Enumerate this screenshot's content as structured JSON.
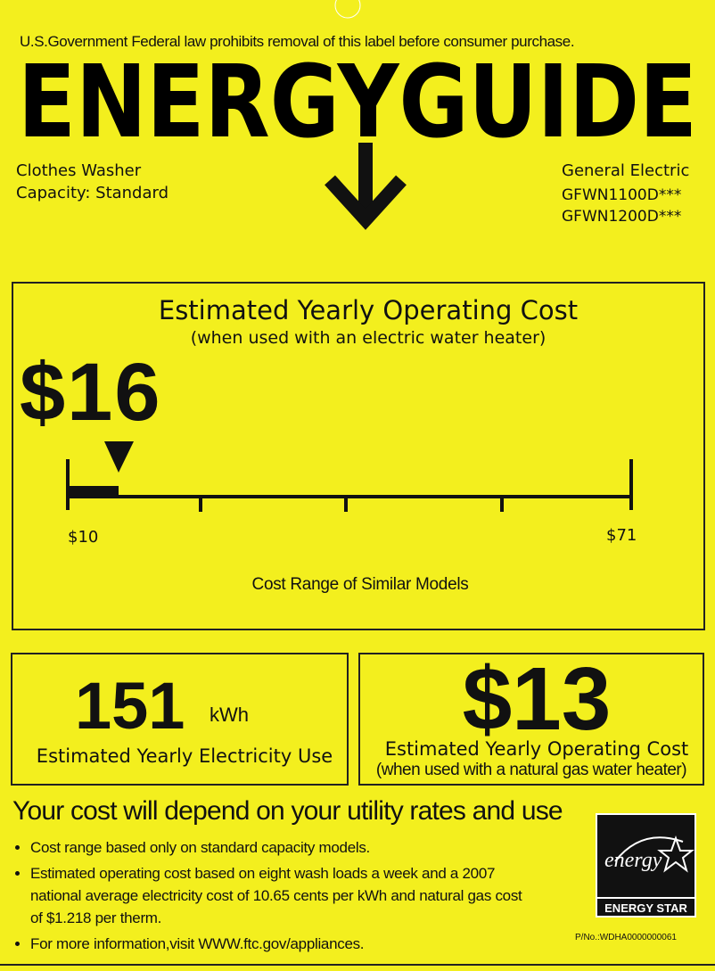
{
  "header": {
    "notice": "U.S.Government Federal law prohibits removal of this label before consumer purchase.",
    "title": "ENERGYGUIDE"
  },
  "product": {
    "type": "Clothes Washer",
    "capacity": "Capacity: Standard",
    "manufacturer": "General Electric",
    "models": [
      "GFWN1100D***",
      "GFWN1200D***"
    ]
  },
  "cost": {
    "title": "Estimated Yearly Operating Cost",
    "subtitle": "(when used with an electric water heater)",
    "value": "$16",
    "range_min": "$10",
    "range_max": "$71",
    "range_label": "Cost Range of Similar Models"
  },
  "electricity": {
    "value": "151",
    "unit": "kWh",
    "label": "Estimated Yearly Electricity Use"
  },
  "gas": {
    "value": "$13",
    "label": "Estimated Yearly Operating Cost",
    "subtitle": "(when used with a natural gas water heater)"
  },
  "footer": {
    "heading": "Your cost will depend on your utility rates and use",
    "bullets": [
      "Cost range based only on standard capacity models.",
      "Estimated operating cost based on eight wash loads a week and a 2007 national average electricity cost of 10.65 cents per kWh and natural gas cost of $1.218 per therm.",
      "For more information,visit WWW.ftc.gov/appliances."
    ],
    "logo_script": "energy",
    "logo_name": "ENERGY STAR",
    "part_number": "P/No.:WDHA0000000061"
  }
}
